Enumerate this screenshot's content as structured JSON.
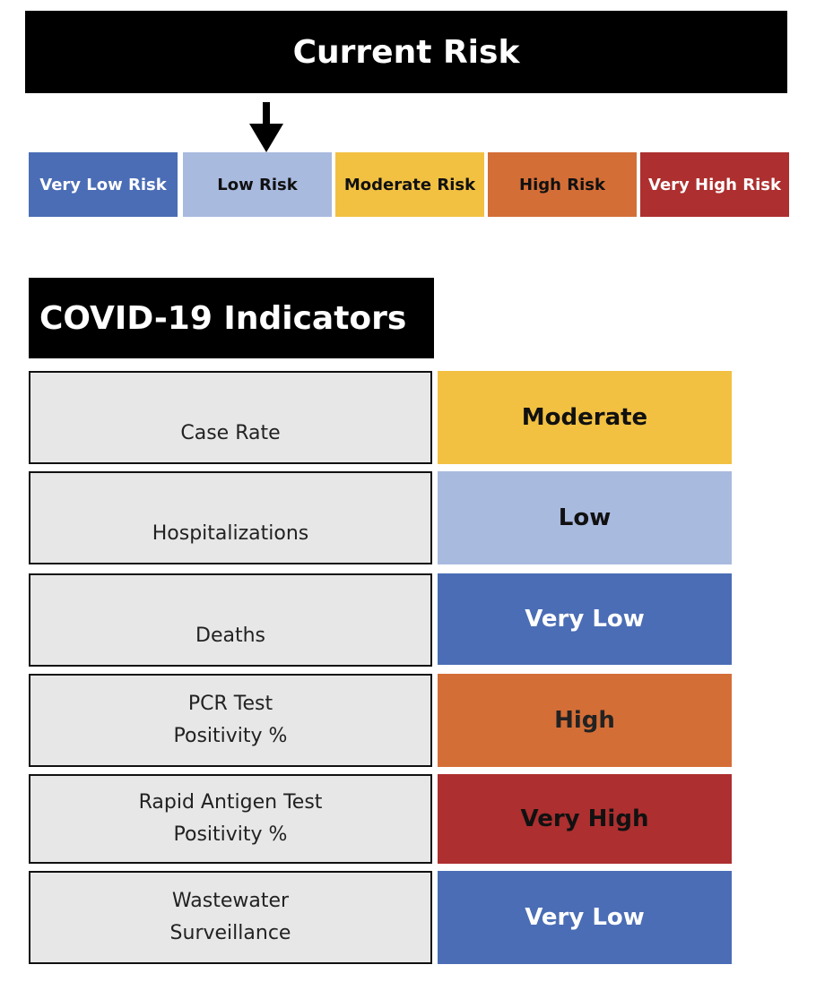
{
  "header": {
    "title": "Current Risk"
  },
  "risk_scale": {
    "current_level": "Low Risk",
    "items": [
      {
        "label": "Very Low Risk",
        "color": "#4a6db5",
        "text_color": "#ffffff"
      },
      {
        "label": "Low Risk",
        "color": "#a9badf",
        "text_color": "#111111"
      },
      {
        "label": "Moderate Risk",
        "color": "#f2c142",
        "text_color": "#111111"
      },
      {
        "label": "High Risk",
        "color": "#d46e37",
        "text_color": "#111111"
      },
      {
        "label": "Very High Risk",
        "color": "#ad2f2f",
        "text_color": "#ffffff"
      }
    ],
    "arrow_icon": "arrow-down-icon"
  },
  "indicators": {
    "title": "COVID-19 Indicators",
    "rows": [
      {
        "label_lines": [
          "Case Rate"
        ],
        "value": "Moderate",
        "color": "#f2c142",
        "text_color": "#111111"
      },
      {
        "label_lines": [
          "Hospitalizations"
        ],
        "value": "Low",
        "color": "#a9badf",
        "text_color": "#111111"
      },
      {
        "label_lines": [
          "Deaths"
        ],
        "value": "Very Low",
        "color": "#4a6db5",
        "text_color": "#ffffff"
      },
      {
        "label_lines": [
          "PCR Test",
          "Positivity %"
        ],
        "value": "High",
        "color": "#d46e37",
        "text_color": "#222222"
      },
      {
        "label_lines": [
          "Rapid Antigen Test",
          "Positivity %"
        ],
        "value": "Very High",
        "color": "#ad2f2f",
        "text_color": "#111111"
      },
      {
        "label_lines": [
          "Wastewater",
          "Surveillance"
        ],
        "value": "Very Low",
        "color": "#4a6db5",
        "text_color": "#ffffff"
      }
    ]
  }
}
